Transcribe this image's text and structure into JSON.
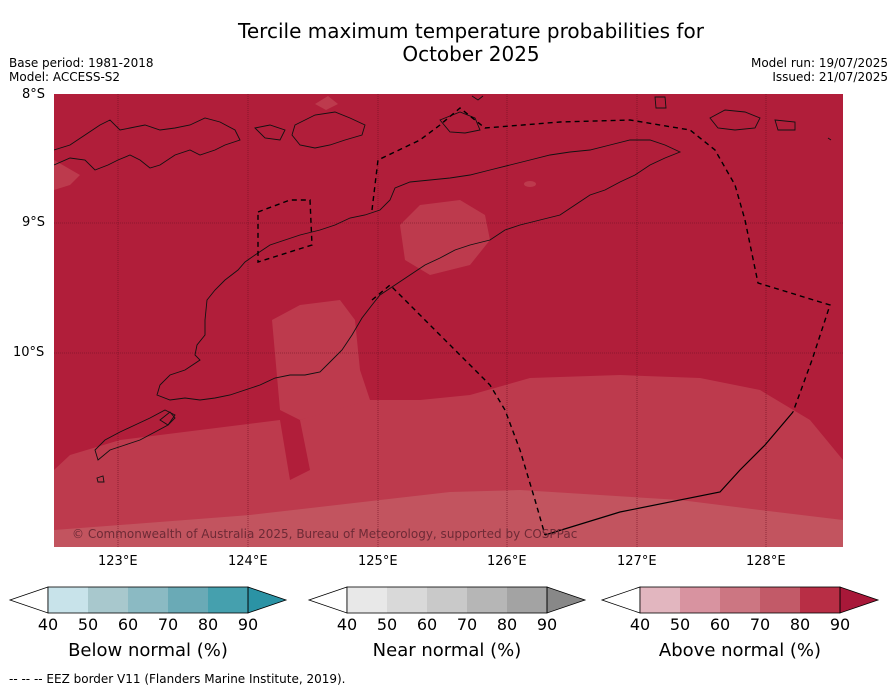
{
  "title_line1": "Tercile maximum temperature probabilities for",
  "title_line2": "October 2025",
  "base_period": "Base period: 1981-2018",
  "model": "Model: ACCESS-S2",
  "model_run": "Model run: 19/07/2025",
  "issued": "Issued: 21/07/2025",
  "copyright": "© Commonwealth of Australia 2025, Bureau of Meteorology, supported by COSPPac",
  "lat_labels": [
    "8°S",
    "9°S",
    "10°S"
  ],
  "lon_labels": [
    "123°E",
    "124°E",
    "125°E",
    "126°E",
    "127°E",
    "128°E"
  ],
  "colorbars": [
    {
      "name": "below",
      "title": "Below normal (%)",
      "ticks": [
        "40",
        "50",
        "60",
        "70",
        "80",
        "90"
      ],
      "colors": [
        "#ffffff",
        "#c8e3ea",
        "#a8c8cd",
        "#8bbac3",
        "#6aaab6",
        "#45a0ae",
        "#2b93a5"
      ]
    },
    {
      "name": "near",
      "title": "Near normal (%)",
      "ticks": [
        "40",
        "50",
        "60",
        "70",
        "80",
        "90"
      ],
      "colors": [
        "#ffffff",
        "#e8e8e8",
        "#d9d9d9",
        "#c9c9c9",
        "#b6b6b6",
        "#a3a3a3",
        "#888888"
      ]
    },
    {
      "name": "above",
      "title": "Above normal (%)",
      "ticks": [
        "40",
        "50",
        "60",
        "70",
        "80",
        "90"
      ],
      "colors": [
        "#ffffff",
        "#e2b6bf",
        "#d893a0",
        "#cc7682",
        "#c25a68",
        "#b82e45",
        "#a81839"
      ]
    }
  ],
  "map_colors": {
    "dominant": "#b11e3a",
    "lower": "#bd3a4d",
    "light": "#c2545f"
  },
  "footnote": "--  --  -- EEZ border V11 (Flanders Marine Institute, 2019)."
}
